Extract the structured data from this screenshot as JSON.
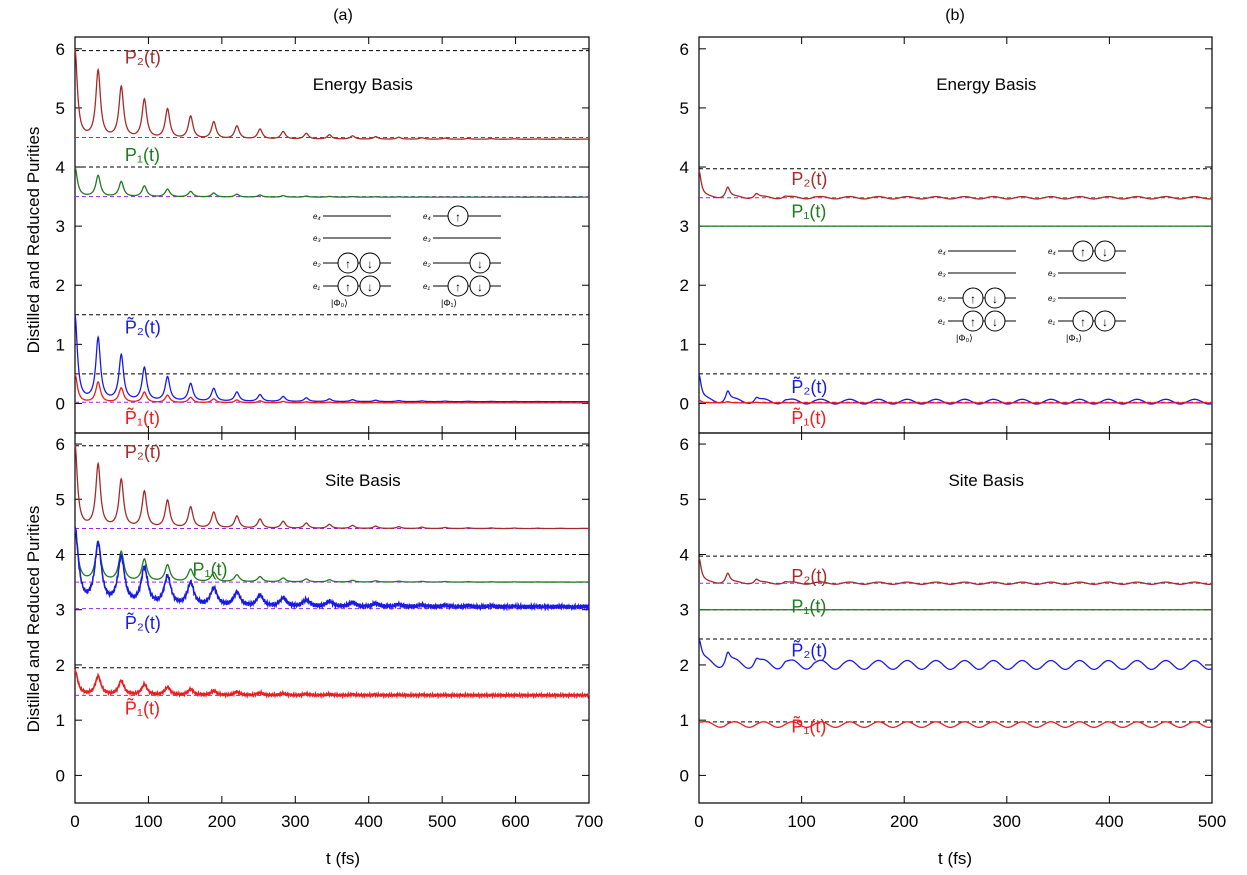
{
  "figure": {
    "panel_labels": [
      "(a)",
      "(b)"
    ],
    "ylabel": "Distilled and Reduced Purities",
    "xlabel": "t (fs)",
    "basis_labels": [
      "Energy Basis",
      "Site Basis"
    ]
  },
  "colors": {
    "P2": "#a52a2a",
    "P1": "#1e7b1e",
    "P2tilde": "#1a1ae6",
    "P1tilde": "#ee1c1c",
    "reference_dashed": "#000000",
    "baseline_dashed": "#a020f0"
  },
  "insets": {
    "level_labels": [
      "e₄",
      "e₃",
      "e₂",
      "e₁"
    ],
    "state_labels": [
      "|Φ₀⟩",
      "|Φ₁⟩"
    ],
    "spin_up": "↑",
    "spin_down": "↓"
  },
  "chart_data": [
    {
      "type": "line",
      "panel": "(a)",
      "title": "Energy Basis",
      "xlabel": "",
      "ylabel": "Distilled and Reduced Purities",
      "xlim": [
        0,
        700
      ],
      "ylim": [
        -0.5,
        6.2
      ],
      "yticks": [
        0,
        1,
        2,
        3,
        4,
        5,
        6
      ],
      "reference_lines": [
        5.97,
        4.0,
        1.5,
        0.5
      ],
      "baseline_lines": [
        4.5,
        3.5,
        0.02
      ],
      "series": [
        {
          "name": "P₂(t)",
          "key": "P2",
          "base": 4.47,
          "amp": 1.5,
          "period": 31.5,
          "decay": 115,
          "width": 3.8,
          "noise": 0
        },
        {
          "name": "P₁(t)",
          "key": "P1",
          "base": 3.49,
          "amp": 0.5,
          "period": 31.5,
          "decay": 95,
          "width": 3.8,
          "noise": 0
        },
        {
          "name": "P̃₂(t)",
          "key": "P2tilde",
          "base": 0.03,
          "amp": 1.45,
          "period": 31.5,
          "decay": 100,
          "width": 3.8,
          "noise": 0
        },
        {
          "name": "P̃₁(t)",
          "key": "P1tilde",
          "base": 0.01,
          "amp": 0.48,
          "period": 31.5,
          "decay": 95,
          "width": 3.8,
          "noise": 0
        }
      ]
    },
    {
      "type": "line",
      "panel": "(a)",
      "title": "Site Basis",
      "xlabel": "t (fs)",
      "ylabel": "Distilled and Reduced Purities",
      "xlim": [
        0,
        700
      ],
      "ylim": [
        -0.5,
        6.2
      ],
      "xticks": [
        0,
        100,
        200,
        300,
        400,
        500,
        600,
        700
      ],
      "yticks": [
        0,
        1,
        2,
        3,
        4,
        5,
        6
      ],
      "reference_lines": [
        5.97,
        4.0,
        1.95
      ],
      "baseline_lines": [
        4.47,
        3.5,
        3.02,
        1.45
      ],
      "series": [
        {
          "name": "P₂(t)",
          "key": "P2",
          "base": 4.47,
          "amp": 1.5,
          "period": 31.5,
          "decay": 115,
          "width": 3.8,
          "noise": 0
        },
        {
          "name": "P₁(t)",
          "key": "P1",
          "base": 3.5,
          "amp": 0.95,
          "period": 31.5,
          "decay": 110,
          "width": 4.2,
          "noise": 0
        },
        {
          "name": "P̃₂(t)",
          "key": "P2tilde",
          "base": 3.05,
          "amp": 1.4,
          "period": 31.5,
          "decay": 130,
          "width": 5.5,
          "noise": 0.04
        },
        {
          "name": "P̃₁(t)",
          "key": "P1tilde",
          "base": 1.45,
          "amp": 0.45,
          "period": 31.5,
          "decay": 110,
          "width": 4.5,
          "noise": 0.025
        }
      ]
    },
    {
      "type": "line",
      "panel": "(b)",
      "title": "Energy Basis",
      "xlabel": "",
      "ylabel": "",
      "xlim": [
        0,
        500
      ],
      "ylim": [
        -0.5,
        6.2
      ],
      "yticks": [
        0,
        1,
        2,
        3,
        4,
        5,
        6
      ],
      "reference_lines": [
        3.97,
        3.0,
        0.5
      ],
      "baseline_lines": [
        3.48,
        0.02
      ],
      "series": [
        {
          "name": "P₂(t)",
          "key": "P2",
          "base": 3.48,
          "amp": 0.45,
          "period": 28,
          "decay": 30,
          "width": 2.5,
          "noise": 0,
          "wiggle": 0.02
        },
        {
          "name": "P₁(t)",
          "key": "P1",
          "base": 3.0,
          "amp": 0,
          "period": 28,
          "decay": 30,
          "width": 2.5,
          "noise": 0
        },
        {
          "name": "P̃₂(t)",
          "key": "P2tilde",
          "base": 0.03,
          "amp": 0.45,
          "period": 28,
          "decay": 30,
          "width": 2.5,
          "noise": 0,
          "wiggle": 0.04
        },
        {
          "name": "P̃₁(t)",
          "key": "P1tilde",
          "base": 0.01,
          "amp": 0.05,
          "period": 28,
          "decay": 30,
          "width": 2.5,
          "noise": 0
        }
      ]
    },
    {
      "type": "line",
      "panel": "(b)",
      "title": "Site Basis",
      "xlabel": "t (fs)",
      "ylabel": "",
      "xlim": [
        0,
        500
      ],
      "ylim": [
        -0.5,
        6.2
      ],
      "xticks": [
        0,
        100,
        200,
        300,
        400,
        500
      ],
      "yticks": [
        0,
        1,
        2,
        3,
        4,
        5,
        6
      ],
      "reference_lines": [
        3.97,
        3.0,
        2.47,
        0.97
      ],
      "baseline_lines": [
        3.48
      ],
      "series": [
        {
          "name": "P₂(t)",
          "key": "P2",
          "base": 3.48,
          "amp": 0.45,
          "period": 28,
          "decay": 30,
          "width": 2.5,
          "noise": 0,
          "wiggle": 0.02
        },
        {
          "name": "P₁(t)",
          "key": "P1",
          "base": 3.0,
          "amp": 0,
          "period": 28,
          "decay": 30,
          "width": 2.5,
          "noise": 0
        },
        {
          "name": "P̃₂(t)",
          "key": "P2tilde",
          "base": 2.0,
          "amp": 0.45,
          "period": 28,
          "decay": 40,
          "width": 2.8,
          "noise": 0,
          "wiggle": 0.08
        },
        {
          "name": "P̃₁(t)",
          "key": "P1tilde",
          "base": 0.92,
          "amp": 0.04,
          "period": 28,
          "decay": 30,
          "width": 2.5,
          "noise": 0,
          "wiggle": 0.05
        }
      ]
    }
  ]
}
